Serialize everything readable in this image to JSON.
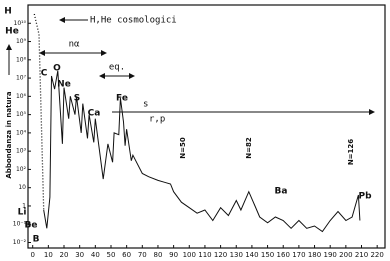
{
  "chart_data": {
    "type": "line",
    "ylabel": "Abbondanza in natura",
    "log_y": true,
    "xlim": [
      -3,
      225
    ],
    "ylim": [
      0.005,
      100000000000.0
    ],
    "xticks": [
      0,
      10,
      20,
      30,
      40,
      50,
      60,
      70,
      80,
      90,
      100,
      110,
      120,
      130,
      140,
      150,
      160,
      170,
      180,
      190,
      200,
      210,
      220
    ],
    "yticks": [
      {
        "value": 0.01,
        "label": "10⁻²"
      },
      {
        "value": 0.1,
        "label": "10⁻¹"
      },
      1,
      10,
      {
        "value": 100,
        "label": "10²"
      },
      {
        "value": 1000,
        "label": "10³"
      },
      {
        "value": 10000,
        "label": "10⁴"
      },
      {
        "value": 100000,
        "label": "10⁵"
      },
      {
        "value": 1000000,
        "label": "10⁶"
      },
      {
        "value": 10000000,
        "label": "10⁷"
      },
      {
        "value": 100000000,
        "label": "10⁸"
      },
      {
        "value": 1000000000,
        "label": "10⁹"
      },
      {
        "value": 10000000000,
        "label": "10¹⁰"
      }
    ],
    "series": [
      {
        "color": "#111111",
        "style": "dotted",
        "x": [
          1,
          4,
          7
        ],
        "values": [
          32000000000.0,
          2500000000.0,
          0.6
        ]
      },
      {
        "color": "#111111",
        "style": "solid",
        "x": [
          7,
          9,
          11,
          12,
          14,
          16,
          19,
          20,
          23,
          24,
          27,
          28,
          31,
          32,
          35,
          36,
          39,
          40,
          45,
          48,
          51,
          52,
          55,
          56,
          58,
          59,
          60,
          63,
          64,
          70,
          74,
          80,
          84,
          88,
          90,
          95,
          100,
          105,
          110,
          115,
          120,
          125,
          130,
          133,
          138,
          142,
          145,
          150,
          155,
          160,
          165,
          170,
          175,
          180,
          185,
          190,
          195,
          200,
          204,
          208,
          209
        ],
        "values": [
          0.6,
          0.06,
          3,
          13000000.0,
          2500000.0,
          25000000.0,
          2500,
          3000000.0,
          60000,
          1000000.0,
          100000,
          1000000.0,
          10000,
          400000,
          5000,
          100000,
          3000,
          60000,
          30,
          2500,
          250,
          10000,
          8000,
          800000,
          40000,
          2000,
          16000,
          300,
          600,
          60,
          40,
          25,
          20,
          16,
          6,
          1.6,
          0.8,
          0.4,
          0.6,
          0.16,
          0.8,
          0.3,
          2,
          0.6,
          6,
          1,
          0.25,
          0.12,
          0.25,
          0.16,
          0.06,
          0.16,
          0.06,
          0.08,
          0.04,
          0.16,
          0.5,
          0.16,
          0.25,
          4,
          0.16
        ]
      }
    ],
    "annotations": [
      "H",
      "He",
      "H,He cosmologici",
      "nα",
      "C",
      "O",
      "Ne",
      "S",
      "Ca",
      "Fe",
      "eq.",
      "s",
      "r,p",
      "N=50",
      "N=82",
      "N=126",
      "Ba",
      "Pb",
      "Li",
      "Be",
      "B"
    ]
  }
}
